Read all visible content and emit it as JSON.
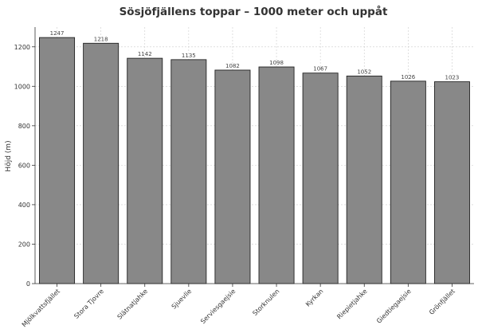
{
  "chart_data": {
    "type": "bar",
    "title": "Sösjöfjällens toppar – 1000 meter och uppåt",
    "xlabel": "",
    "ylabel": "Höjd (m)",
    "categories": [
      "Mjölkvattsfjället",
      "Stora Tjovre",
      "Slätnatjahke",
      "Sjuevlie",
      "Serviesgaejsie",
      "Storknulen",
      "Kyrkan",
      "Riepietjahke",
      "Giedtiegaejsie",
      "Grönfjället"
    ],
    "values": [
      1247,
      1218,
      1142,
      1135,
      1082,
      1098,
      1067,
      1052,
      1026,
      1023
    ],
    "ylim": [
      0,
      1300
    ],
    "yticks": [
      0,
      200,
      400,
      600,
      800,
      1000,
      1200
    ],
    "grid": true,
    "bar_color": "#888888",
    "bar_edge_color": "#222222"
  }
}
